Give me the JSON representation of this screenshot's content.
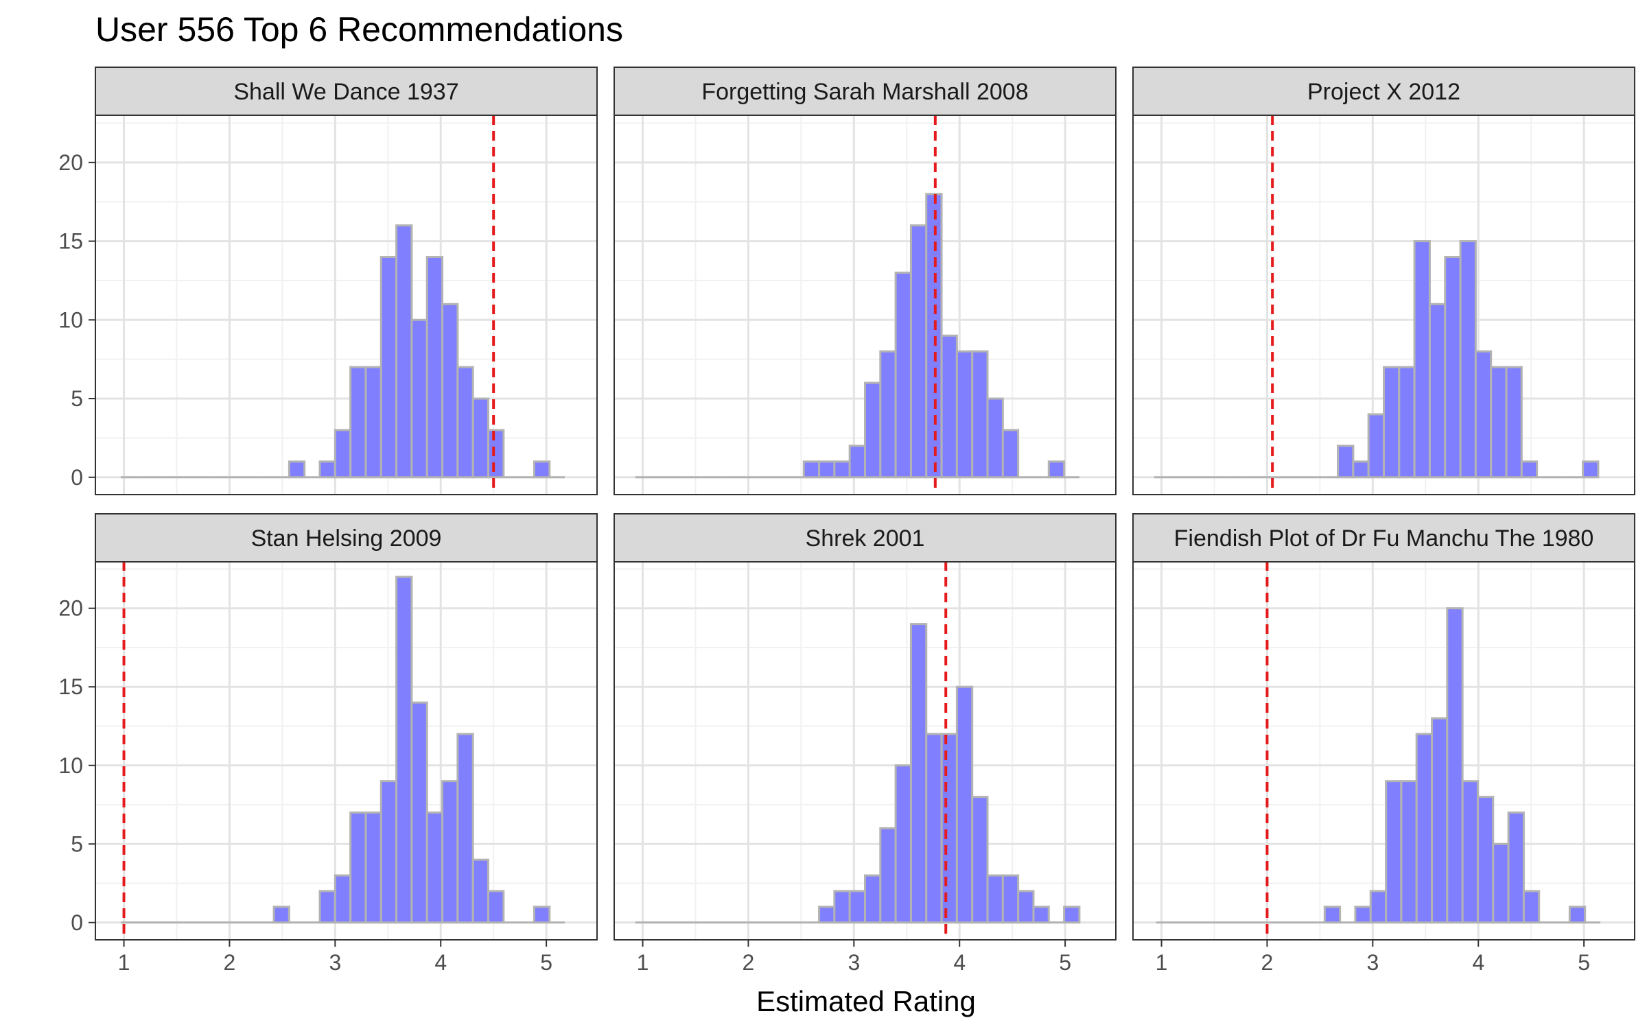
{
  "chart_data": {
    "type": "histogram",
    "title": "User 556 Top 6 Recommendations",
    "xlabel": "Estimated Rating",
    "ylabel": "",
    "x_ticks": [
      1,
      2,
      3,
      4,
      5
    ],
    "y_ticks": [
      0,
      5,
      10,
      15,
      20
    ],
    "xlim": [
      0.73,
      5.48
    ],
    "ylim": [
      -1.1,
      23
    ],
    "grid": true,
    "bin_width": 0.145,
    "colors": {
      "bar_fill": "#8080ff",
      "bar_outline": "#b3b3b3",
      "reference_line": "#e41a1c",
      "strip_background": "#d9d9d9",
      "panel_border": "#333333",
      "grid_major": "#e3e3e3",
      "grid_minor": "#f1f1f1"
    },
    "panels": [
      {
        "label": "Shall We Dance  1937",
        "reference_x": 4.5,
        "bins_start": 0.97,
        "counts": [
          0,
          0,
          0,
          0,
          0,
          0,
          0,
          0,
          0,
          0,
          0,
          1,
          0,
          1,
          3,
          7,
          7,
          14,
          16,
          10,
          14,
          11,
          7,
          5,
          3,
          0,
          0,
          1,
          0
        ]
      },
      {
        "label": "Forgetting Sarah Marshall  2008",
        "reference_x": 3.77,
        "bins_start": 0.93,
        "counts": [
          0,
          0,
          0,
          0,
          0,
          0,
          0,
          0,
          0,
          0,
          0,
          1,
          1,
          1,
          2,
          6,
          8,
          13,
          16,
          18,
          9,
          8,
          8,
          5,
          3,
          0,
          0,
          1,
          0
        ]
      },
      {
        "label": "Project X  2012",
        "reference_x": 2.05,
        "bins_start": 0.93,
        "counts": [
          0,
          0,
          0,
          0,
          0,
          0,
          0,
          0,
          0,
          0,
          0,
          0,
          2,
          1,
          4,
          7,
          7,
          15,
          11,
          14,
          15,
          8,
          7,
          7,
          1,
          0,
          0,
          0,
          1
        ]
      },
      {
        "label": "Stan Helsing  2009",
        "reference_x": 1.0,
        "bins_start": 0.97,
        "counts": [
          0,
          0,
          0,
          0,
          0,
          0,
          0,
          0,
          0,
          0,
          1,
          0,
          0,
          2,
          3,
          7,
          7,
          9,
          22,
          14,
          7,
          9,
          12,
          4,
          2,
          0,
          0,
          1,
          0
        ]
      },
      {
        "label": "Shrek  2001",
        "reference_x": 3.87,
        "bins_start": 0.93,
        "counts": [
          0,
          0,
          0,
          0,
          0,
          0,
          0,
          0,
          0,
          0,
          0,
          0,
          1,
          2,
          2,
          3,
          6,
          10,
          19,
          12,
          12,
          15,
          8,
          3,
          3,
          2,
          1,
          0,
          1
        ]
      },
      {
        "label": "Fiendish Plot of Dr  Fu Manchu  The  1980",
        "reference_x": 2.0,
        "bins_start": 0.95,
        "counts": [
          0,
          0,
          0,
          0,
          0,
          0,
          0,
          0,
          0,
          0,
          0,
          1,
          0,
          1,
          2,
          9,
          9,
          12,
          13,
          20,
          9,
          8,
          5,
          7,
          2,
          0,
          0,
          1,
          0
        ]
      }
    ]
  }
}
